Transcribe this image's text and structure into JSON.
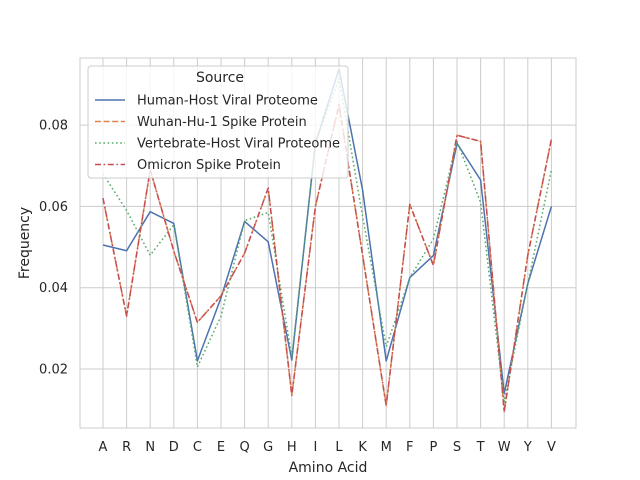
{
  "chart_data": {
    "type": "line",
    "title": "",
    "xlabel": "Amino Acid",
    "ylabel": "Frequency",
    "categories": [
      "A",
      "R",
      "N",
      "D",
      "C",
      "E",
      "Q",
      "G",
      "H",
      "I",
      "L",
      "K",
      "M",
      "F",
      "P",
      "S",
      "T",
      "W",
      "Y",
      "V"
    ],
    "ylim": [
      0.0055,
      0.0965
    ],
    "yticks": [
      0.02,
      0.04,
      0.06,
      0.08
    ],
    "ytick_labels": [
      "0.02",
      "0.04",
      "0.06",
      "0.08"
    ],
    "grid": true,
    "legend": {
      "title": "Source",
      "placement": "upper-left"
    },
    "series": [
      {
        "name": "Human-Host Viral Proteome",
        "color": "#4c72b0",
        "dash": "solid",
        "values": [
          0.0505,
          0.0491,
          0.0587,
          0.0558,
          0.022,
          0.0375,
          0.0563,
          0.0513,
          0.0222,
          0.0755,
          0.0938,
          0.064,
          0.022,
          0.0425,
          0.0479,
          0.0755,
          0.0665,
          0.014,
          0.041,
          0.06
        ]
      },
      {
        "name": "Wuhan-Hu-1 Spike Protein",
        "color": "#dd8452",
        "dash": "dashed",
        "values": [
          0.062,
          0.033,
          0.069,
          0.049,
          0.0315,
          0.038,
          0.0485,
          0.0645,
          0.0135,
          0.06,
          0.085,
          0.048,
          0.011,
          0.0605,
          0.0455,
          0.0775,
          0.076,
          0.0095,
          0.048,
          0.0765
        ]
      },
      {
        "name": "Vertebrate-Host Viral Proteome",
        "color": "#55a868",
        "dash": "dotted",
        "values": [
          0.068,
          0.059,
          0.048,
          0.0555,
          0.0205,
          0.033,
          0.0565,
          0.0585,
          0.023,
          0.0755,
          0.0915,
          0.0575,
          0.0255,
          0.0425,
          0.052,
          0.076,
          0.061,
          0.012,
          0.041,
          0.069
        ]
      },
      {
        "name": "Omicron Spike Protein",
        "color": "#c44e52",
        "dash": "dashdot",
        "values": [
          0.062,
          0.033,
          0.069,
          0.049,
          0.0315,
          0.038,
          0.0485,
          0.0645,
          0.0135,
          0.06,
          0.085,
          0.048,
          0.011,
          0.0605,
          0.0455,
          0.0775,
          0.076,
          0.0095,
          0.048,
          0.0765
        ]
      }
    ]
  }
}
